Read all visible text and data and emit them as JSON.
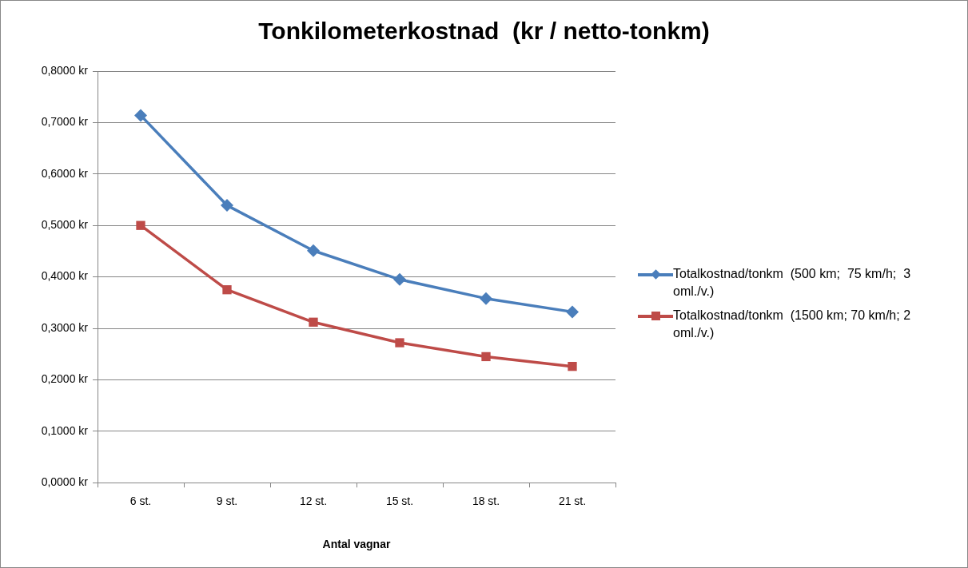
{
  "chart_data": {
    "type": "line",
    "title": "Tonkilometerkostnad  (kr / netto-tonkm)",
    "xlabel": "Antal vagnar",
    "categories": [
      "6 st.",
      "9 st.",
      "12 st.",
      "15 st.",
      "18 st.",
      "21 st."
    ],
    "series": [
      {
        "name": "Totalkostnad/tonkm  (500 km;  75 km/h;  3 oml./v.)",
        "color": "#4a7ebb",
        "marker": "diamond",
        "values": [
          0.714,
          0.539,
          0.451,
          0.395,
          0.358,
          0.332
        ]
      },
      {
        "name": "Totalkostnad/tonkm  (1500 km; 70 km/h; 2 oml./v.)",
        "color": "#be4b48",
        "marker": "square",
        "values": [
          0.5,
          0.375,
          0.312,
          0.272,
          0.245,
          0.226
        ]
      }
    ],
    "ylim": [
      0,
      0.8
    ],
    "yticks": [
      {
        "value": 0,
        "label": "0,0000 kr"
      },
      {
        "value": 0.1,
        "label": "0,1000 kr"
      },
      {
        "value": 0.2,
        "label": "0,2000 kr"
      },
      {
        "value": 0.3,
        "label": "0,3000 kr"
      },
      {
        "value": 0.4,
        "label": "0,4000 kr"
      },
      {
        "value": 0.5,
        "label": "0,5000 kr"
      },
      {
        "value": 0.6,
        "label": "0,6000 kr"
      },
      {
        "value": 0.7,
        "label": "0,7000 kr"
      },
      {
        "value": 0.8,
        "label": "0,8000 kr"
      }
    ],
    "grid": "y",
    "legend": "right",
    "line_style": "solid"
  }
}
